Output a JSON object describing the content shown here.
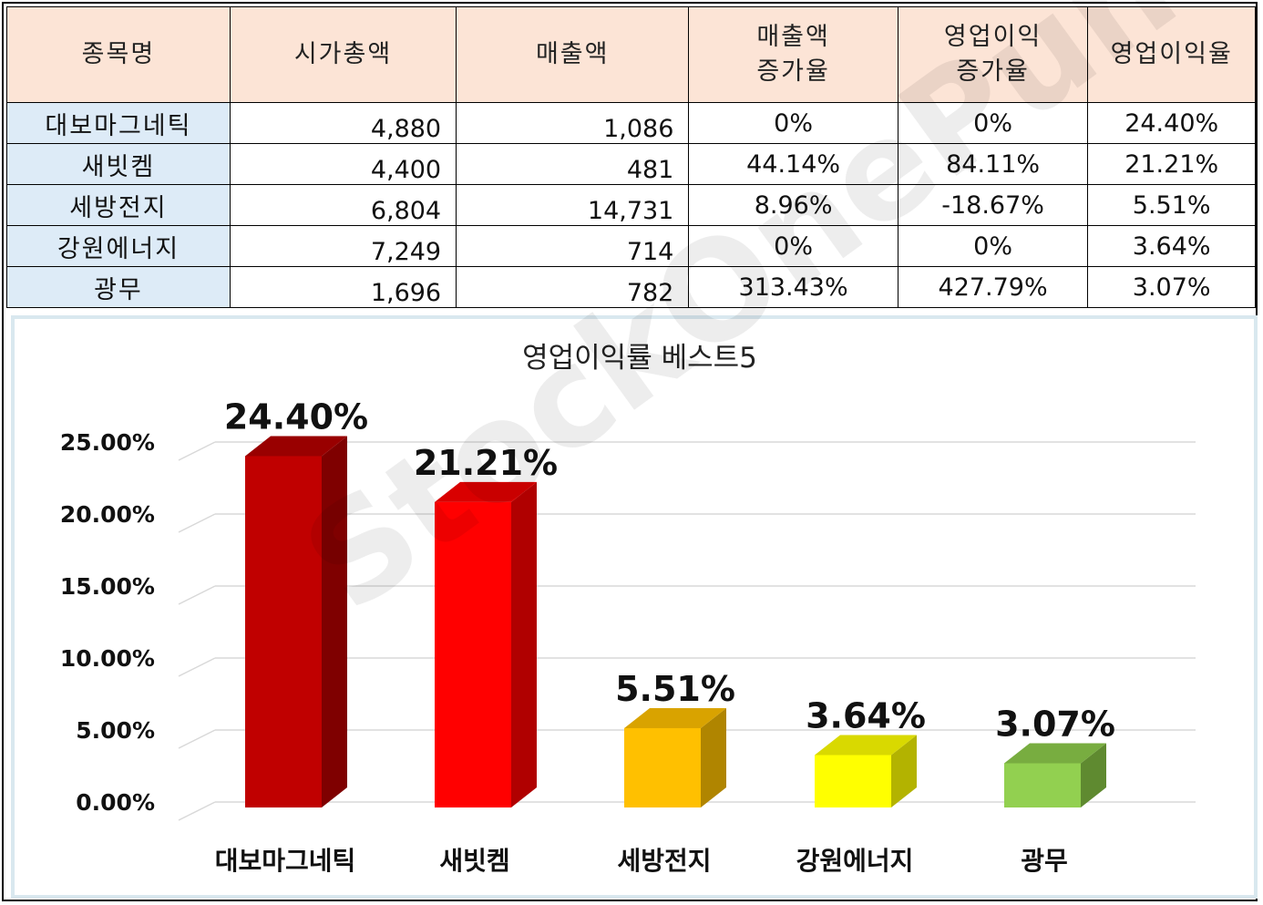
{
  "table": {
    "headers": [
      "종목명",
      "시가총액",
      "매출액",
      "매출액\n증가율",
      "영업이익\n증가율",
      "영업이익율"
    ],
    "rows": [
      {
        "name": "대보마그네틱",
        "market_cap": "4,880",
        "revenue": "1,086",
        "revenue_growth": "0%",
        "op_growth": "0%",
        "op_margin": "24.40%"
      },
      {
        "name": "새빗켐",
        "market_cap": "4,400",
        "revenue": "481",
        "revenue_growth": "44.14%",
        "op_growth": "84.11%",
        "op_margin": "21.21%"
      },
      {
        "name": "세방전지",
        "market_cap": "6,804",
        "revenue": "14,731",
        "revenue_growth": "8.96%",
        "op_growth": "-18.67%",
        "op_margin": "5.51%"
      },
      {
        "name": "강원에너지",
        "market_cap": "7,249",
        "revenue": "714",
        "revenue_growth": "0%",
        "op_growth": "0%",
        "op_margin": "3.64%"
      },
      {
        "name": "광무",
        "market_cap": "1,696",
        "revenue": "782",
        "revenue_growth": "313.43%",
        "op_growth": "427.79%",
        "op_margin": "3.07%"
      }
    ]
  },
  "watermark": "StockOnePunch",
  "chart_data": {
    "type": "bar",
    "title": "영업이익률 베스트5",
    "categories": [
      "대보마그네틱",
      "새빗켐",
      "세방전지",
      "강원에너지",
      "광무"
    ],
    "values": [
      24.4,
      21.21,
      5.51,
      3.64,
      3.07
    ],
    "data_labels": [
      "24.40%",
      "21.21%",
      "5.51%",
      "3.64%",
      "3.07%"
    ],
    "yticks": [
      "0.00%",
      "5.00%",
      "10.00%",
      "15.00%",
      "20.00%",
      "25.00%"
    ],
    "ylim": [
      0,
      27.5
    ],
    "grid": true,
    "style": "3d",
    "bar_colors": [
      {
        "front": "#c00000",
        "side": "#7f0000",
        "top": "#990000"
      },
      {
        "front": "#ff0000",
        "side": "#b00000",
        "top": "#d90000"
      },
      {
        "front": "#ffc000",
        "side": "#b08500",
        "top": "#d9a300"
      },
      {
        "front": "#ffff00",
        "side": "#b3b300",
        "top": "#d9d900"
      },
      {
        "front": "#92d050",
        "side": "#5f8a30",
        "top": "#78ad40"
      }
    ]
  }
}
